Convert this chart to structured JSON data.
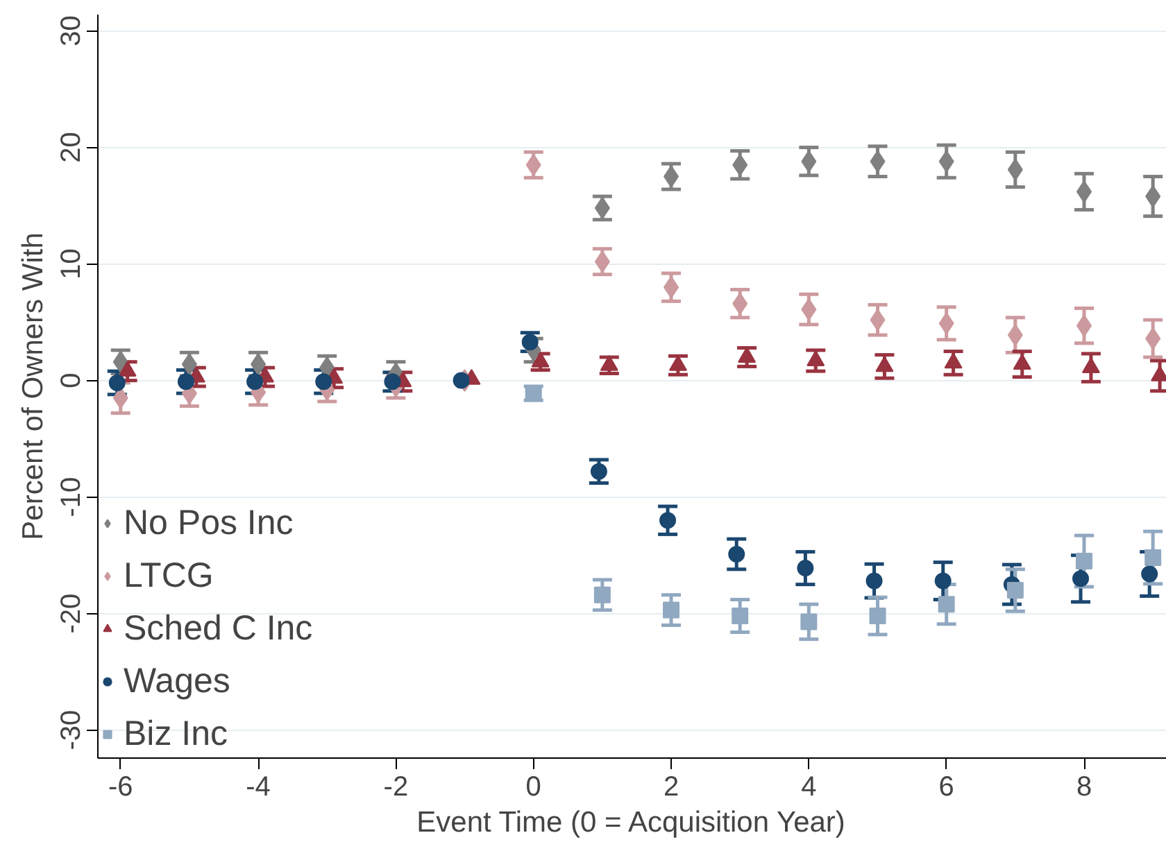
{
  "chart_data": {
    "type": "scatter",
    "xlabel": "Event Time (0 = Acquisition Year)",
    "ylabel": "Percent of Owners With",
    "xlim": [
      -6.33,
      9.2
    ],
    "ylim": [
      -32.4,
      31.4
    ],
    "xticks": [
      -6,
      -4,
      -2,
      0,
      2,
      4,
      6,
      8
    ],
    "yticks": [
      -30,
      -20,
      -10,
      0,
      10,
      20,
      30
    ],
    "grid": "y",
    "legend": "bottom left",
    "series": [
      {
        "name": "No Pos Inc",
        "color": "#808080",
        "marker": "diamond",
        "x": [
          -6,
          -5,
          -4,
          -3,
          -2,
          -1,
          0,
          1,
          2,
          3,
          4,
          5,
          6,
          7,
          8,
          9
        ],
        "values": [
          1.6,
          1.4,
          1.4,
          1.1,
          0.6,
          0,
          2.6,
          14.8,
          17.5,
          18.5,
          18.8,
          18.8,
          18.8,
          18.1,
          16.2,
          15.8
        ],
        "errors": [
          1,
          1,
          1,
          1,
          1,
          null,
          1,
          1,
          1.1,
          1.2,
          1.2,
          1.3,
          1.4,
          1.5,
          1.55,
          1.7
        ]
      },
      {
        "name": "LTCG",
        "color": "#cc9a9e",
        "marker": "diamond",
        "x": [
          -6,
          -5,
          -4,
          -3,
          -2,
          -1,
          0,
          1,
          2,
          3,
          4,
          5,
          6,
          7,
          8,
          9
        ],
        "values": [
          -1.5,
          -1.1,
          -1.0,
          -0.8,
          -0.5,
          0,
          18.5,
          10.2,
          8.0,
          6.6,
          6.1,
          5.2,
          4.9,
          3.9,
          4.7,
          3.6
        ],
        "errors": [
          1.3,
          1.1,
          1.1,
          1.0,
          1.0,
          null,
          1.1,
          1.1,
          1.2,
          1.2,
          1.3,
          1.3,
          1.4,
          1.5,
          1.5,
          1.6
        ]
      },
      {
        "name": "Sched C Inc",
        "color": "#993340",
        "marker": "triangle",
        "x": [
          -5.9,
          -4.9,
          -3.9,
          -2.9,
          -1.9,
          -0.9,
          0.1,
          1.1,
          2.1,
          3.1,
          4.1,
          5.1,
          6.1,
          7.1,
          8.1,
          9.1
        ],
        "values": [
          0.8,
          0.3,
          0.3,
          0.2,
          -0.1,
          0.1,
          1.6,
          1.3,
          1.3,
          2.0,
          1.7,
          1.2,
          1.5,
          1.4,
          1.1,
          0.4
        ],
        "errors": [
          0.8,
          0.8,
          0.8,
          0.8,
          0.8,
          null,
          0.7,
          0.7,
          0.8,
          0.8,
          0.9,
          1.0,
          1.0,
          1.1,
          1.2,
          1.3
        ]
      },
      {
        "name": "Wages",
        "color": "#1a476f",
        "marker": "circle",
        "x": [
          -6.05,
          -5.05,
          -4.05,
          -3.05,
          -2.05,
          -1.05,
          -0.05,
          0.95,
          1.95,
          2.95,
          3.95,
          4.95,
          5.95,
          6.95,
          7.95,
          8.95
        ],
        "values": [
          -0.2,
          -0.1,
          -0.1,
          -0.1,
          -0.1,
          0,
          3.3,
          -7.8,
          -12.0,
          -14.9,
          -16.1,
          -17.2,
          -17.2,
          -17.5,
          -17.0,
          -16.6
        ],
        "errors": [
          1,
          1,
          1,
          1,
          0.8,
          null,
          0.8,
          1.0,
          1.2,
          1.3,
          1.4,
          1.45,
          1.6,
          1.7,
          2.0,
          1.9
        ]
      },
      {
        "name": "Biz Inc",
        "color": "#90a8c0",
        "marker": "square",
        "x": [
          0,
          1,
          2,
          3,
          4,
          5,
          6,
          7,
          8,
          9
        ],
        "values": [
          -1.1,
          -18.4,
          -19.7,
          -20.2,
          -20.7,
          -20.2,
          -19.2,
          -18.0,
          -15.5,
          -15.2
        ],
        "errors": [
          0.6,
          1.3,
          1.3,
          1.4,
          1.5,
          1.6,
          1.7,
          1.8,
          2.2,
          2.25
        ]
      }
    ]
  }
}
